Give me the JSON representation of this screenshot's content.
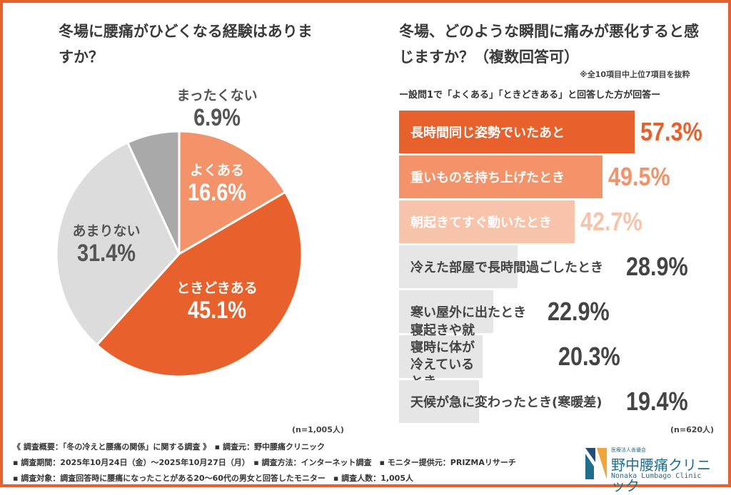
{
  "left": {
    "title": "冬場に腰痛がひどくなる経験はありますか？",
    "n": "(n=1,005人)"
  },
  "right": {
    "title": "冬場、どのような瞬間に痛みが悪化すると感じますか？（複数回答可）",
    "note": "※全10項目中上位7項目を抜粋",
    "subtitle": "ー設問1で「よくある」「ときどきある」と回答した方が回答ー",
    "n": "(n=620人)"
  },
  "chart_data": [
    {
      "type": "pie",
      "title": "冬場に腰痛がひどくなる経験はありますか？",
      "categories": [
        "よくある",
        "ときどきある",
        "あまりない",
        "まったくない"
      ],
      "values": [
        16.6,
        45.1,
        31.4,
        6.9
      ],
      "labels": [
        "16.6%",
        "45.1%",
        "31.4%",
        "6.9%"
      ],
      "colors": [
        "#f4926a",
        "#e8612c",
        "#dcdcdc",
        "#a9a9a9"
      ]
    },
    {
      "type": "bar",
      "orientation": "horizontal",
      "title": "冬場、どのような瞬間に痛みが悪化すると感じますか？（複数回答可）",
      "categories": [
        "長時間同じ姿勢でいたあと",
        "重いものを持ち上げたとき",
        "朝起きてすぐ動いたとき",
        "冷えた部屋で長時間過ごしたとき",
        "寒い屋外に出たとき",
        "寝起きや就寝時に体が冷えているとき",
        "天候が急に変わったとき(寒暖差)"
      ],
      "values": [
        57.3,
        49.5,
        42.7,
        28.9,
        22.9,
        20.3,
        19.4
      ],
      "labels": [
        "57.3%",
        "49.5%",
        "42.7%",
        "28.9%",
        "22.9%",
        "20.3%",
        "19.4%"
      ],
      "colors": [
        "#e8612c",
        "#f4926a",
        "#f8c3ab",
        "#e6e6e6",
        "#e6e6e6",
        "#e6e6e6",
        "#e6e6e6"
      ],
      "value_colors": [
        "#e8612c",
        "#f4926a",
        "#f8c3ab",
        "#444444",
        "#444444",
        "#444444",
        "#444444"
      ]
    }
  ],
  "footer": {
    "lines": [
      "《 調査概要：「冬の冷えと腰痛の関係」に関する調査 》　▪ 調査元：野中腰痛クリニック",
      "▪ 調査期間：2025年10月24日（金）～2025年10月27日（月）　▪ 調査方法：インターネット調査　▪ モニター提供元：PRIZMAリサーチ",
      "▪ 調査対象：調査回答時に腰痛になったことがある20～60代の男女と回答したモニター　▪ 調査人数：1,005人"
    ]
  },
  "logo": {
    "small": "医療法人善優会",
    "name": "野中腰痛クリニック",
    "en": "Nonaka Lumbago Clinic"
  }
}
